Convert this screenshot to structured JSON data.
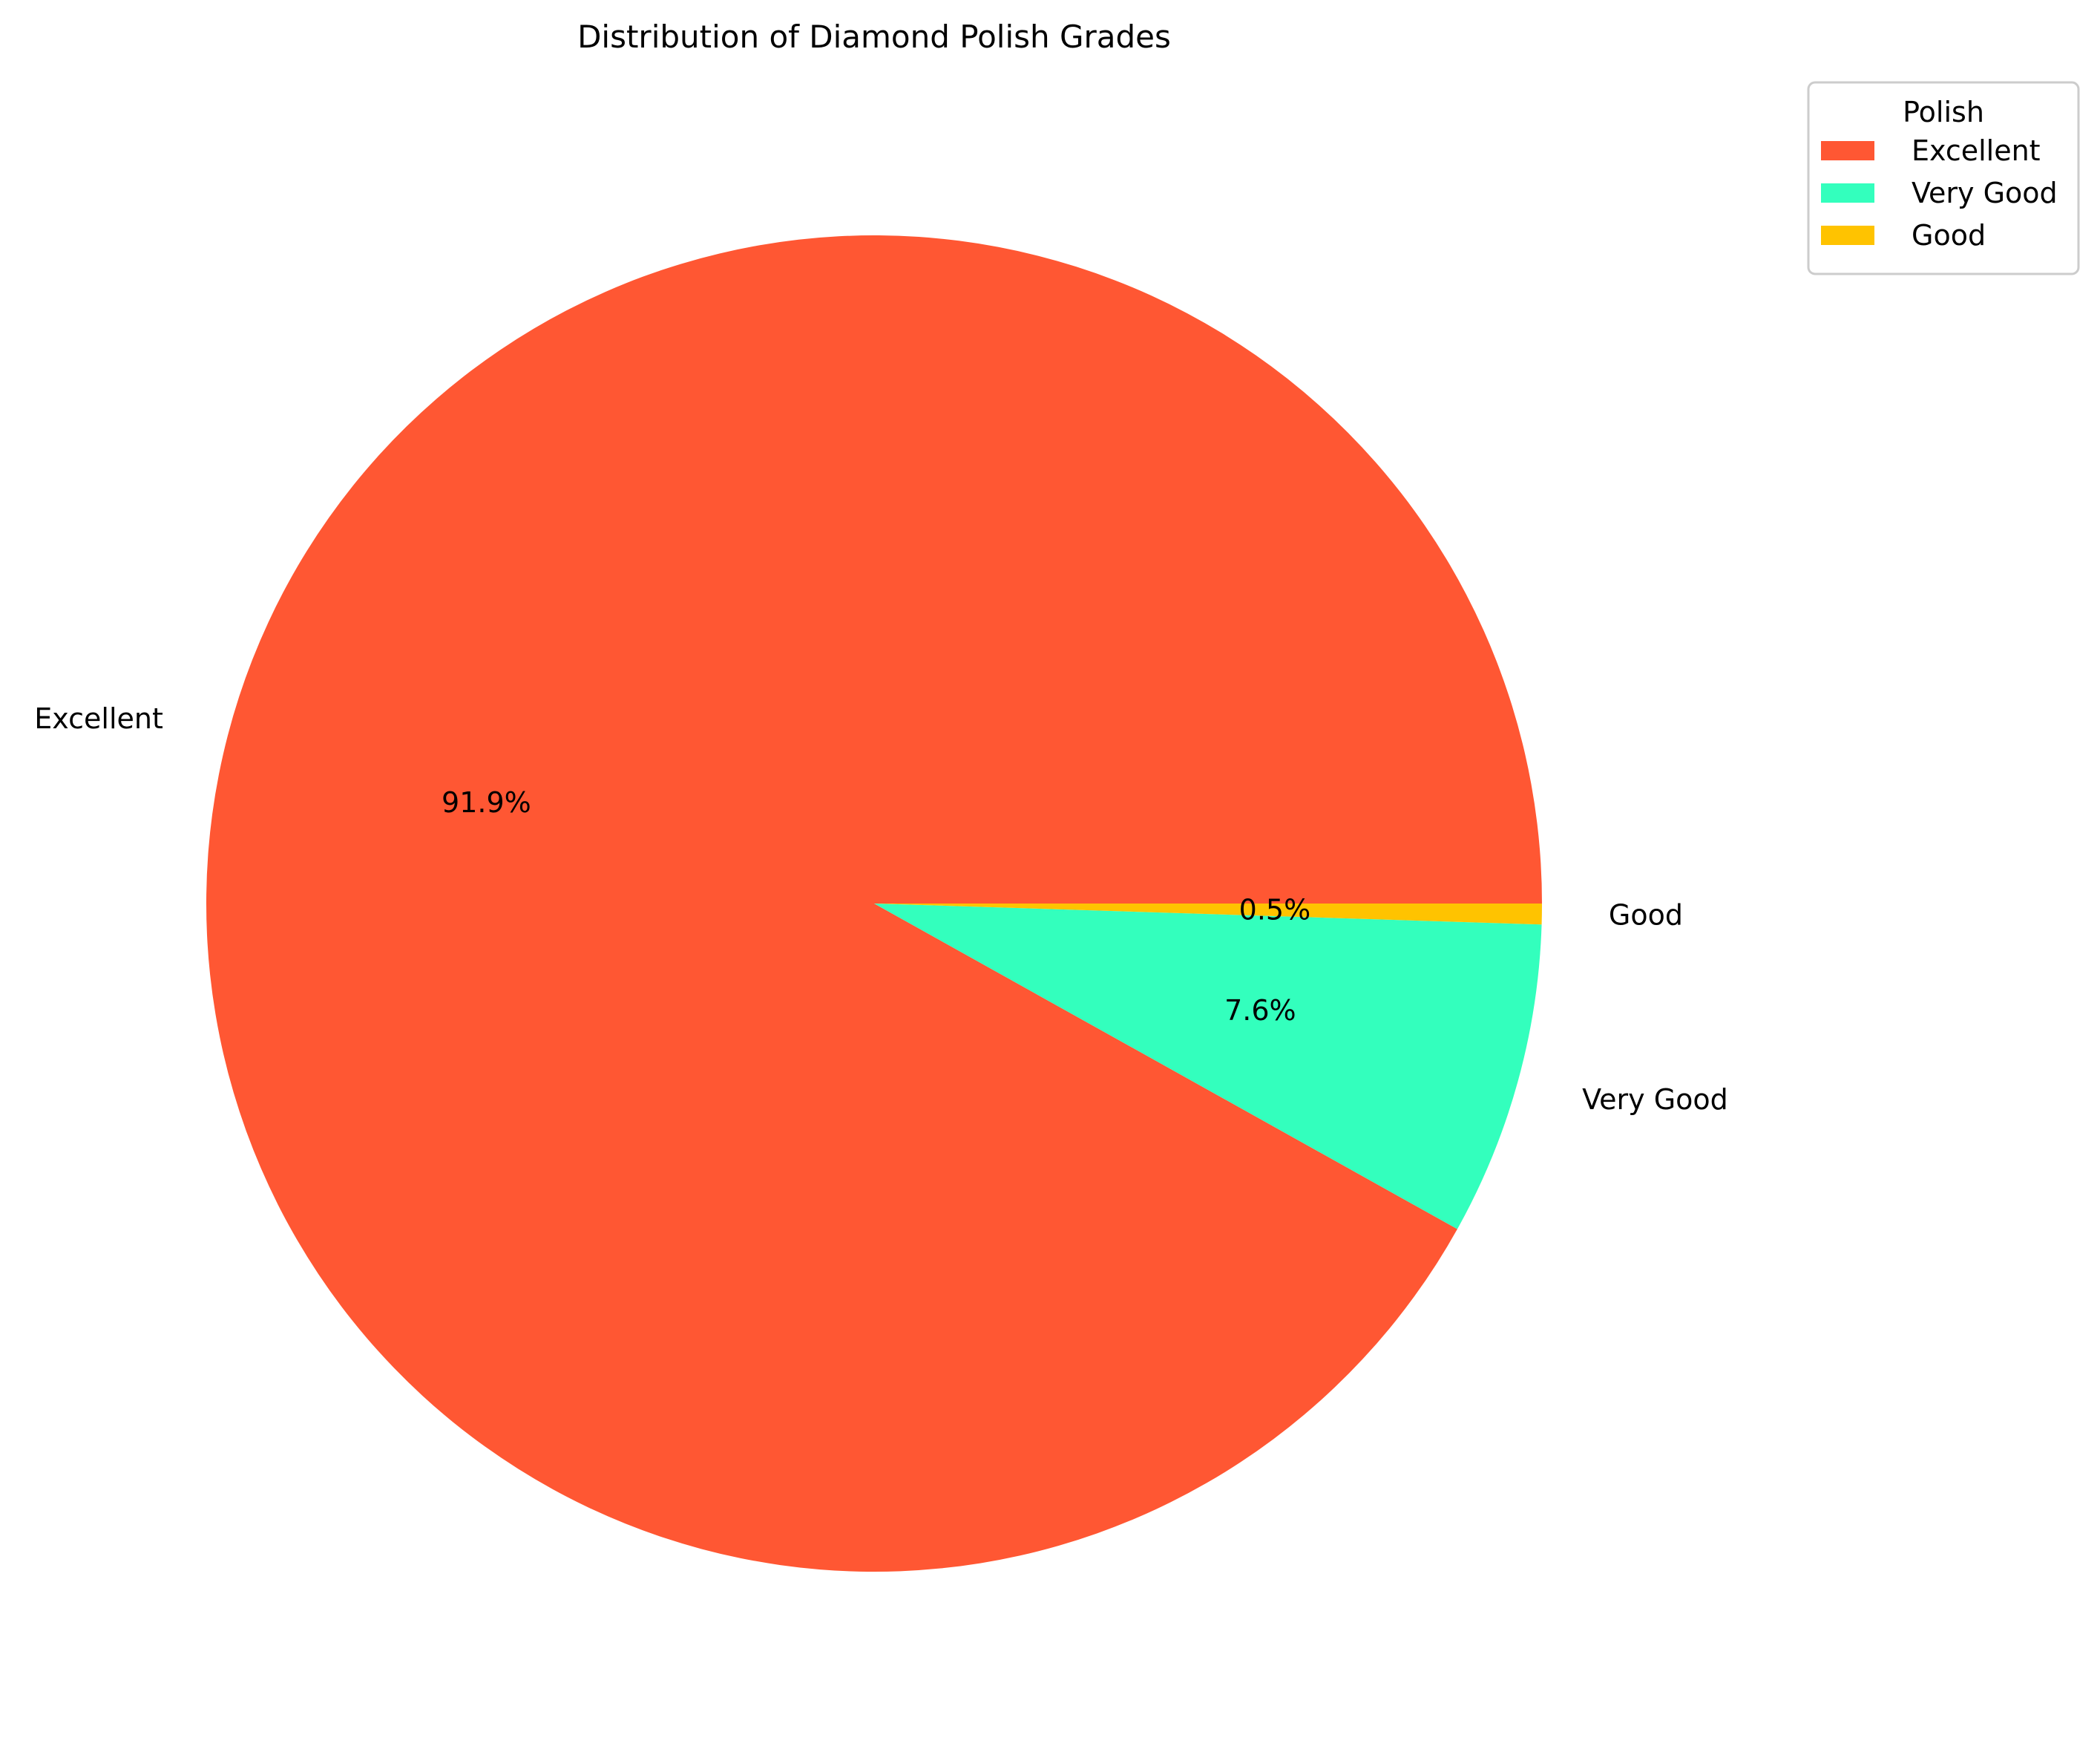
{
  "chart_data": {
    "type": "pie",
    "title": "Distribution of Diamond Polish Grades",
    "categories": [
      "Excellent",
      "Very Good",
      "Good"
    ],
    "values": [
      91.9,
      7.6,
      0.5
    ],
    "value_labels": [
      "91.9%",
      "7.6%",
      "0.5%"
    ],
    "colors": [
      "#FF5733",
      "#33FFBD",
      "#FFC300"
    ],
    "start_angle_deg": 0,
    "direction": "counterclockwise",
    "legend": {
      "title": "Polish",
      "placement": "top-right"
    }
  }
}
